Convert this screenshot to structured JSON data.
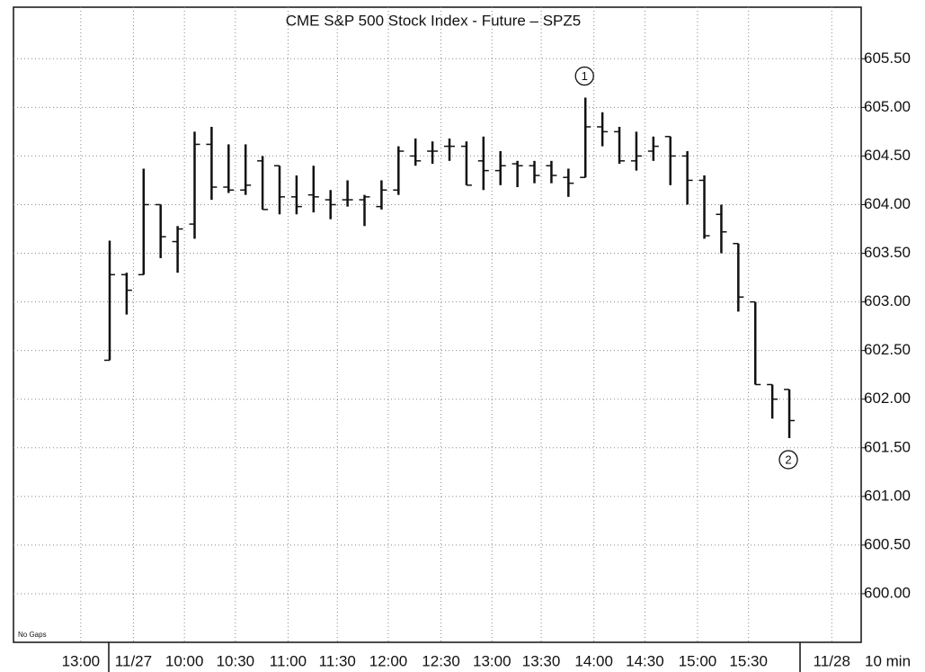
{
  "chart_data": {
    "type": "ohlc",
    "title": "CME  S&P 500  Stock  Index  -  Future  –  SPZ5",
    "note": "No Gaps",
    "interval_label": "10  min",
    "color": "#111111",
    "grid": true,
    "categories": [
      null,
      null,
      null,
      null,
      null,
      null,
      null,
      null,
      null,
      null,
      null,
      null,
      null,
      null,
      null,
      null,
      null,
      null,
      null,
      null,
      null,
      null,
      null,
      null,
      null,
      null,
      null,
      null,
      null,
      null,
      null,
      null,
      null,
      null,
      null,
      null,
      null,
      null,
      null,
      null,
      null
    ],
    "series": [
      {
        "name": "Open",
        "values": [
          602.4,
          603.28,
          603.28,
          604.0,
          603.62,
          603.8,
          604.62,
          604.18,
          604.15,
          604.45,
          604.4,
          604.08,
          604.1,
          604.05,
          604.05,
          604.05,
          603.98,
          604.15,
          604.5,
          604.55,
          604.6,
          604.6,
          604.45,
          604.35,
          604.42,
          604.4,
          604.4,
          604.28,
          604.28,
          604.8,
          604.75,
          604.45,
          604.55,
          604.7,
          604.5,
          604.25,
          603.9,
          603.6,
          603.0,
          602.15,
          602.1
        ]
      },
      {
        "name": "High",
        "values": [
          603.63,
          603.3,
          604.37,
          604.0,
          603.78,
          604.75,
          604.8,
          604.62,
          604.62,
          604.5,
          604.4,
          604.3,
          604.4,
          604.15,
          604.25,
          604.1,
          604.25,
          604.6,
          604.68,
          604.65,
          604.68,
          604.65,
          604.7,
          604.55,
          604.45,
          604.45,
          604.45,
          604.37,
          605.1,
          604.95,
          604.8,
          604.75,
          604.7,
          604.7,
          604.55,
          604.3,
          604.0,
          603.6,
          603.0,
          602.15,
          602.1
        ]
      },
      {
        "name": "Low",
        "values": [
          602.4,
          602.87,
          603.28,
          603.45,
          603.3,
          603.65,
          604.05,
          604.12,
          604.1,
          603.95,
          603.9,
          603.9,
          603.92,
          603.85,
          603.98,
          603.78,
          603.95,
          604.1,
          604.4,
          604.42,
          604.45,
          604.2,
          604.15,
          604.2,
          604.18,
          604.22,
          604.22,
          604.08,
          604.28,
          604.6,
          604.42,
          604.35,
          604.45,
          604.2,
          604.0,
          603.65,
          603.5,
          602.9,
          602.15,
          601.8,
          601.6
        ]
      },
      {
        "name": "Close",
        "values": [
          603.28,
          603.12,
          604.0,
          603.67,
          603.75,
          604.62,
          604.18,
          604.15,
          604.2,
          603.95,
          604.08,
          603.98,
          604.08,
          604.0,
          604.05,
          604.08,
          604.15,
          604.55,
          604.45,
          604.55,
          604.6,
          604.2,
          604.35,
          604.4,
          604.4,
          604.3,
          604.3,
          604.22,
          604.8,
          604.75,
          604.45,
          604.5,
          604.6,
          604.5,
          604.25,
          603.68,
          603.72,
          603.05,
          602.15,
          602.0,
          601.78
        ]
      }
    ],
    "annotations": [
      {
        "text": "1",
        "bar": 28,
        "position": "above"
      },
      {
        "text": "2",
        "bar": 40,
        "position": "below"
      }
    ],
    "xlim": [
      -5.66,
      44.23
    ],
    "xticks": [
      {
        "value": -1.7,
        "label": "13:00"
      },
      {
        "value": 1.4,
        "label": "11/27"
      },
      {
        "value": 4.4,
        "label": "10:00"
      },
      {
        "value": 7.4,
        "label": "10:30"
      },
      {
        "value": 10.5,
        "label": "11:00"
      },
      {
        "value": 13.4,
        "label": "11:30"
      },
      {
        "value": 16.4,
        "label": "12:00"
      },
      {
        "value": 19.5,
        "label": "12:30"
      },
      {
        "value": 22.5,
        "label": "13:00"
      },
      {
        "value": 25.4,
        "label": "13:30"
      },
      {
        "value": 28.5,
        "label": "14:00"
      },
      {
        "value": 31.5,
        "label": "14:30"
      },
      {
        "value": 34.6,
        "label": "15:00"
      },
      {
        "value": 37.6,
        "label": "15:30"
      },
      {
        "value": 42.5,
        "label": "11/28"
      }
    ],
    "ylim": [
      599.5,
      606.03
    ],
    "yticks": [
      {
        "value": 600,
        "label": "600.00"
      },
      {
        "value": 600.5,
        "label": "600.50"
      },
      {
        "value": 601,
        "label": "601.00"
      },
      {
        "value": 601.5,
        "label": "601.50"
      },
      {
        "value": 602,
        "label": "602.00"
      },
      {
        "value": 602.5,
        "label": "602.50"
      },
      {
        "value": 603,
        "label": "603.00"
      },
      {
        "value": 603.5,
        "label": "603.50"
      },
      {
        "value": 604,
        "label": "604.00"
      },
      {
        "value": 604.5,
        "label": "604.50"
      },
      {
        "value": 605,
        "label": "605.00"
      },
      {
        "value": 605.5,
        "label": "605.50"
      }
    ]
  }
}
